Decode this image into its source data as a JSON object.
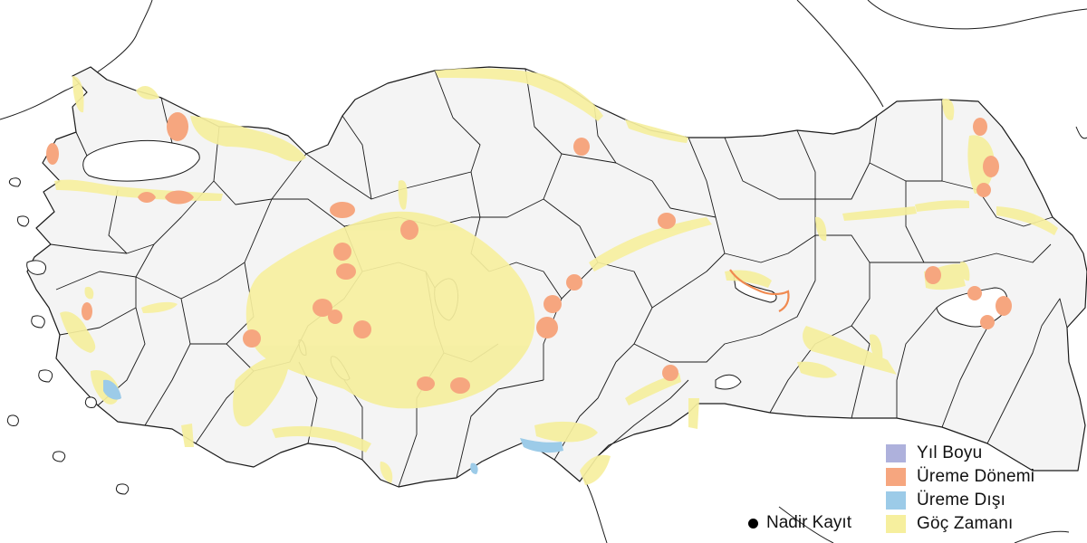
{
  "colors": {
    "sea": "#ffffff",
    "land": "#f4f4f4",
    "border": "#1a1a1a",
    "year_round": "#aeb1dc",
    "breeding": "#f6a67f",
    "non_breeding": "#9ccbe8",
    "migration": "#f6ef9e",
    "rare_dot": "#000000"
  },
  "legend": {
    "items": [
      {
        "key": "year_round",
        "label": "Yıl Boyu"
      },
      {
        "key": "breeding",
        "label": "Üreme Dönemi"
      },
      {
        "key": "non_breeding",
        "label": "Üreme Dışı"
      },
      {
        "key": "migration",
        "label": "Göç Zamanı"
      }
    ],
    "rare_label": "Nadir Kayıt"
  }
}
